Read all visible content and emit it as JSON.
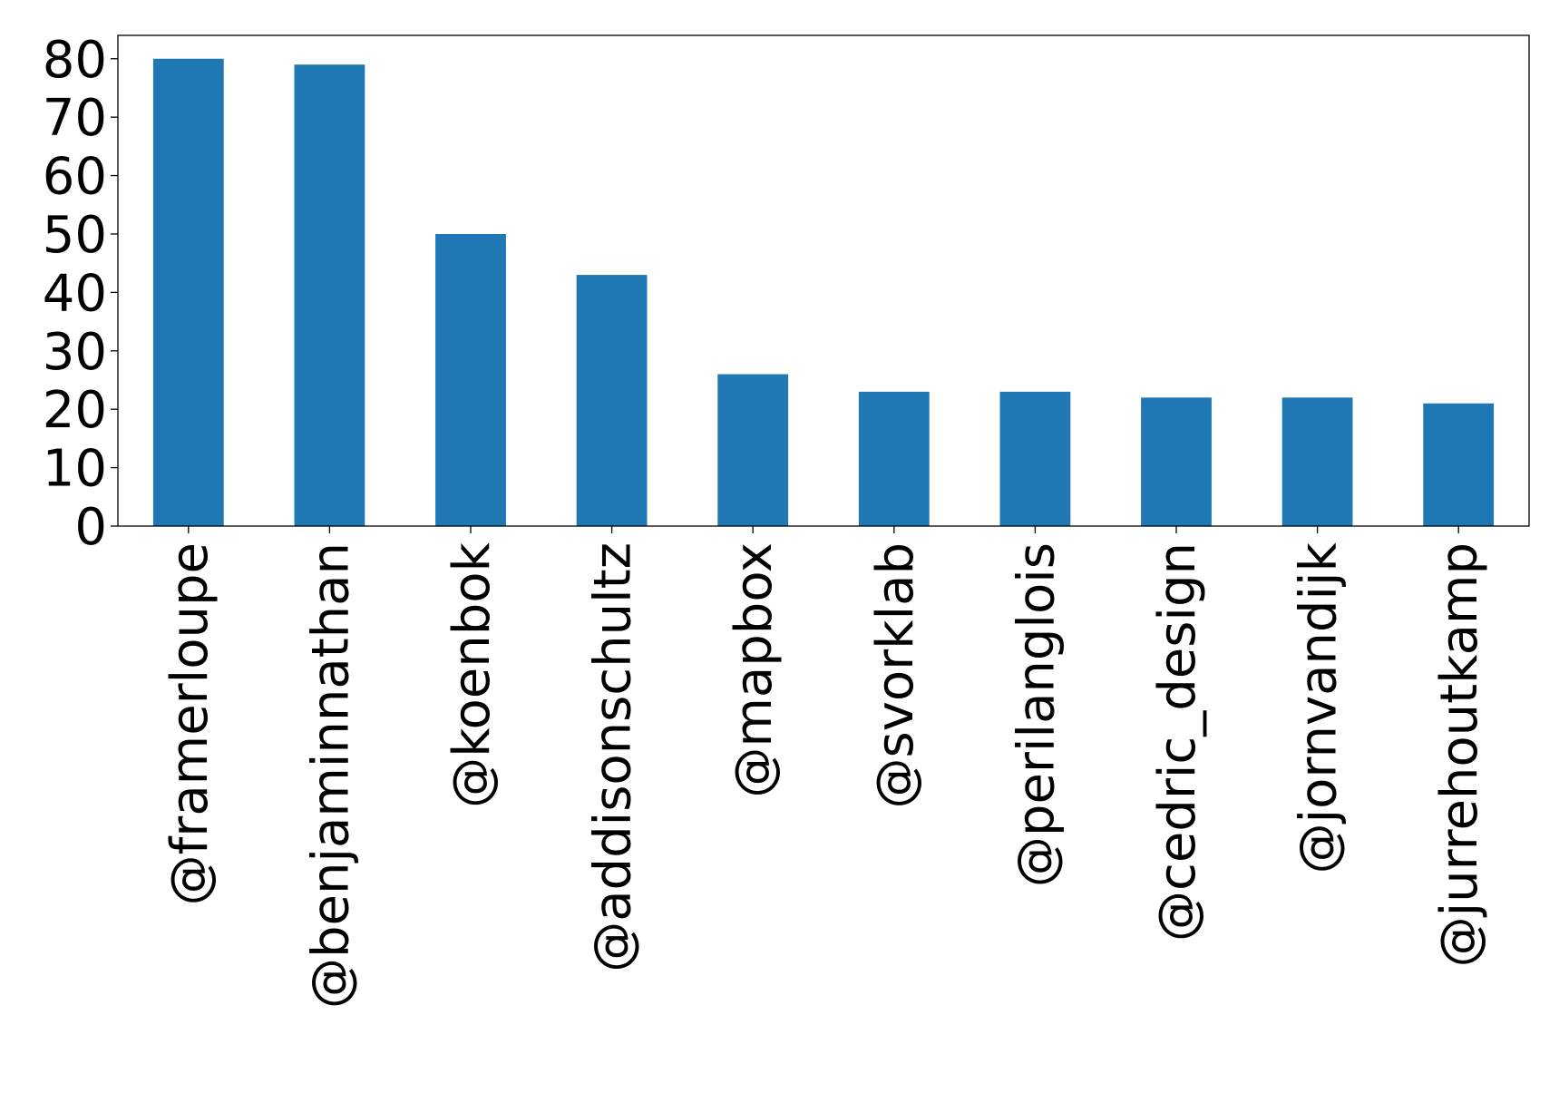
{
  "chart_data": {
    "type": "bar",
    "title": "",
    "xlabel": "",
    "ylabel": "",
    "categories": [
      "@framerloupe",
      "@benjaminnathan",
      "@koenbok",
      "@addisonschultz",
      "@mapbox",
      "@svorklab",
      "@perilanglois",
      "@cedric_design",
      "@jornvandijk",
      "@jurrehoutkamp"
    ],
    "values": [
      80,
      79,
      50,
      43,
      26,
      23,
      23,
      22,
      22,
      21
    ],
    "ylim": [
      0,
      84
    ],
    "yticks": [
      0,
      10,
      20,
      30,
      40,
      50,
      60,
      70,
      80
    ],
    "ytick_labels": [
      "0",
      "10",
      "20",
      "30",
      "40",
      "50",
      "60",
      "70",
      "80"
    ],
    "grid": false,
    "legend": "none",
    "colors": {
      "bar": "#1f77b4",
      "axes": "#000000",
      "background": "#ffffff"
    }
  }
}
